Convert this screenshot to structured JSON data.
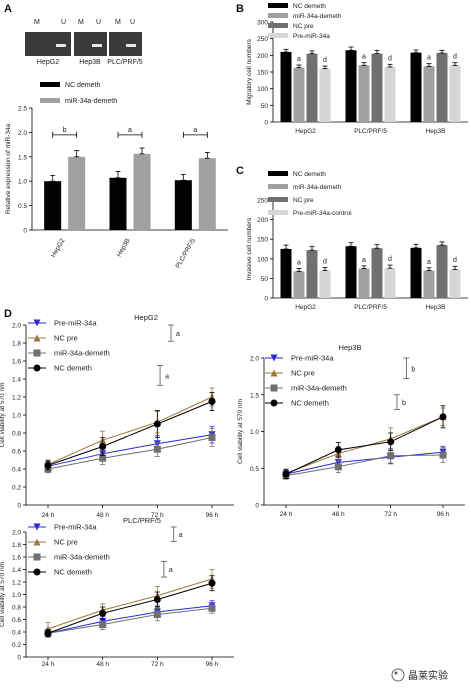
{
  "panel_letters": [
    "A",
    "B",
    "C",
    "D"
  ],
  "watermark": "晶莱实验",
  "gels": [
    {
      "label": "HepG2",
      "lanes": [
        "M",
        "U"
      ]
    },
    {
      "label": "Hep3B",
      "lanes": [
        "M",
        "U"
      ]
    },
    {
      "label": "PLC/PRF/5",
      "lanes": [
        "M",
        "U"
      ]
    }
  ],
  "chart_data": [
    {
      "id": "A",
      "type": "bar",
      "title": "",
      "ylabel": "Relative expression of miR-34a",
      "xlabel": "",
      "ylim": [
        0,
        2.5
      ],
      "yticks": [
        "0",
        "0.5",
        "1.0",
        "1.5",
        "2.0",
        "2.5"
      ],
      "categories": [
        "HepG2",
        "Hep3B",
        "PLC/PRF/5"
      ],
      "series": [
        {
          "name": "NC demeth",
          "color": "#000000",
          "values": [
            1.0,
            1.07,
            1.02
          ],
          "errors": [
            0.12,
            0.13,
            0.12
          ]
        },
        {
          "name": "miR-34a-demeth",
          "color": "#a0a0a0",
          "values": [
            1.5,
            1.56,
            1.47
          ],
          "errors": [
            0.13,
            0.12,
            0.12
          ]
        }
      ],
      "significance": [
        {
          "group": 0,
          "label": "b",
          "y": 1.95
        },
        {
          "group": 1,
          "label": "a",
          "y": 1.95
        },
        {
          "group": 2,
          "label": "a",
          "y": 1.95
        }
      ],
      "legend_position": "top"
    },
    {
      "id": "B",
      "type": "bar",
      "title": "",
      "ylabel": "Migratory cell numbers",
      "xlabel": "",
      "ylim": [
        0,
        300
      ],
      "yticks": [
        "0",
        "50",
        "100",
        "150",
        "200",
        "250",
        "300"
      ],
      "categories": [
        "HepG2",
        "PLC/PRF/5",
        "Hep3B"
      ],
      "series": [
        {
          "name": "NC demeth",
          "color": "#000000",
          "values": [
            210,
            215,
            208
          ],
          "errors": [
            8,
            10,
            8
          ]
        },
        {
          "name": "miR-34a-demeth",
          "color": "#a0a0a0",
          "values": [
            163,
            170,
            167
          ],
          "errors": [
            8,
            8,
            8
          ]
        },
        {
          "name": "NC pre",
          "color": "#707070",
          "values": [
            205,
            205,
            207
          ],
          "errors": [
            8,
            10,
            8
          ]
        },
        {
          "name": "Pre-miR-34a",
          "color": "#d6d6d6",
          "values": [
            160,
            165,
            170
          ],
          "errors": [
            8,
            8,
            8
          ]
        }
      ],
      "sig_labels": [
        {
          "group": 0,
          "bar": 1,
          "label": "a"
        },
        {
          "group": 0,
          "bar": 3,
          "label": "d"
        },
        {
          "group": 1,
          "bar": 1,
          "label": "a"
        },
        {
          "group": 1,
          "bar": 3,
          "label": "d"
        },
        {
          "group": 2,
          "bar": 1,
          "label": "a"
        },
        {
          "group": 2,
          "bar": 3,
          "label": "d"
        }
      ],
      "legend_position": "top"
    },
    {
      "id": "C",
      "type": "bar",
      "title": "",
      "ylabel": "Invasive cell numbers",
      "xlabel": "",
      "ylim": [
        0,
        250
      ],
      "yticks": [
        "0",
        "50",
        "100",
        "150",
        "200",
        "250"
      ],
      "categories": [
        "HepG2",
        "PLC/PRF/5",
        "Hep3B"
      ],
      "series": [
        {
          "name": "NC demeth",
          "color": "#000000",
          "values": [
            125,
            132,
            128
          ],
          "errors": [
            10,
            9,
            9
          ]
        },
        {
          "name": "miR-34a-demeth",
          "color": "#a0a0a0",
          "values": [
            68,
            75,
            70
          ],
          "errors": [
            7,
            7,
            7
          ]
        },
        {
          "name": "NC pre",
          "color": "#707070",
          "values": [
            122,
            127,
            135
          ],
          "errors": [
            9,
            9,
            8
          ]
        },
        {
          "name": "Pre-miR-34a-control",
          "color": "#d6d6d6",
          "values": [
            70,
            76,
            73
          ],
          "errors": [
            8,
            8,
            8
          ]
        }
      ],
      "sig_labels": [
        {
          "group": 0,
          "bar": 1,
          "label": "a"
        },
        {
          "group": 0,
          "bar": 3,
          "label": "d"
        },
        {
          "group": 1,
          "bar": 1,
          "label": "a"
        },
        {
          "group": 1,
          "bar": 3,
          "label": "d"
        },
        {
          "group": 2,
          "bar": 1,
          "label": "a"
        },
        {
          "group": 2,
          "bar": 3,
          "label": "d"
        }
      ],
      "legend_position": "top"
    },
    {
      "id": "D1",
      "type": "line",
      "title": "HepG2",
      "ylabel": "Cell viability at 570 nm",
      "xlabel": "",
      "x": [
        "24 h",
        "48 h",
        "72 h",
        "96 h"
      ],
      "ylim": [
        0,
        2.0
      ],
      "yticks": [
        "0",
        "0.2",
        "0.4",
        "0.6",
        "0.8",
        "1.0",
        "1.2",
        "1.4",
        "1.6",
        "1.8",
        "2.0"
      ],
      "series": [
        {
          "name": "Pre-miR-34a",
          "color": "#2a2ad6",
          "marker": "tri-down",
          "values": [
            0.43,
            0.57,
            0.68,
            0.78
          ],
          "errors": [
            0.05,
            0.07,
            0.09,
            0.09
          ]
        },
        {
          "name": "NC pre",
          "color": "#a0743a",
          "marker": "tri-up",
          "values": [
            0.45,
            0.72,
            0.92,
            1.2
          ],
          "errors": [
            0.05,
            0.1,
            0.12,
            0.1
          ]
        },
        {
          "name": "miR-34a-demeth",
          "color": "#707070",
          "marker": "square",
          "values": [
            0.4,
            0.52,
            0.62,
            0.75
          ],
          "errors": [
            0.04,
            0.07,
            0.08,
            0.1
          ]
        },
        {
          "name": "NC demeth",
          "color": "#000000",
          "marker": "circle",
          "values": [
            0.44,
            0.65,
            0.9,
            1.15
          ],
          "errors": [
            0.05,
            0.1,
            0.15,
            0.1
          ]
        }
      ],
      "brackets": [
        {
          "x": 2.25,
          "y1": 1.82,
          "y2": 2.0,
          "label": "a"
        },
        {
          "x": 2.05,
          "y1": 1.33,
          "y2": 1.55,
          "label": "a"
        }
      ],
      "legend_position": "top-left"
    },
    {
      "id": "D2",
      "type": "line",
      "title": "Hep3B",
      "ylabel": "Cell viability at 570 nm",
      "xlabel": "",
      "x": [
        "24 h",
        "48 h",
        "72 h",
        "96 h"
      ],
      "ylim": [
        0,
        2.0
      ],
      "yticks": [
        "0",
        "0.5",
        "1.0",
        "1.5",
        "2.0"
      ],
      "series": [
        {
          "name": "Pre-miR-34a",
          "color": "#2a2ad6",
          "marker": "tri-down",
          "values": [
            0.42,
            0.58,
            0.65,
            0.72
          ],
          "errors": [
            0.05,
            0.08,
            0.09,
            0.08
          ]
        },
        {
          "name": "NC pre",
          "color": "#a0743a",
          "marker": "tri-up",
          "values": [
            0.43,
            0.7,
            0.9,
            1.2
          ],
          "errors": [
            0.06,
            0.1,
            0.15,
            0.12
          ]
        },
        {
          "name": "miR-34a-demeth",
          "color": "#707070",
          "marker": "square",
          "values": [
            0.4,
            0.52,
            0.67,
            0.68
          ],
          "errors": [
            0.05,
            0.08,
            0.1,
            0.1
          ]
        },
        {
          "name": "NC demeth",
          "color": "#000000",
          "marker": "circle",
          "values": [
            0.42,
            0.75,
            0.86,
            1.2
          ],
          "errors": [
            0.06,
            0.1,
            0.12,
            0.15
          ]
        }
      ],
      "brackets": [
        {
          "x": 2.3,
          "y1": 1.72,
          "y2": 2.0,
          "label": "b"
        },
        {
          "x": 2.12,
          "y1": 1.3,
          "y2": 1.5,
          "label": "b"
        }
      ],
      "legend_position": "top-left"
    },
    {
      "id": "D3",
      "type": "line",
      "title": "PLC/PRF/5",
      "ylabel": "Cell viability at 570 nm",
      "xlabel": "",
      "x": [
        "24 h",
        "48 h",
        "72 h",
        "96 h"
      ],
      "ylim": [
        0,
        2.0
      ],
      "yticks": [
        "0",
        "0.2",
        "0.4",
        "0.6",
        "0.8",
        "1.0",
        "1.2",
        "1.4",
        "1.6",
        "1.8",
        "2.0"
      ],
      "series": [
        {
          "name": "Pre-miR-34a",
          "color": "#2a2ad6",
          "marker": "tri-down",
          "values": [
            0.38,
            0.57,
            0.72,
            0.82
          ],
          "errors": [
            0.05,
            0.08,
            0.09,
            0.08
          ]
        },
        {
          "name": "NC pre",
          "color": "#a0743a",
          "marker": "tri-up",
          "values": [
            0.45,
            0.75,
            0.98,
            1.25
          ],
          "errors": [
            0.1,
            0.1,
            0.15,
            0.15
          ]
        },
        {
          "name": "miR-34a-demeth",
          "color": "#707070",
          "marker": "square",
          "values": [
            0.38,
            0.52,
            0.68,
            0.78
          ],
          "errors": [
            0.05,
            0.08,
            0.1,
            0.08
          ]
        },
        {
          "name": "NC demeth",
          "color": "#000000",
          "marker": "circle",
          "values": [
            0.38,
            0.7,
            0.92,
            1.18
          ],
          "errors": [
            0.06,
            0.1,
            0.12,
            0.12
          ]
        }
      ],
      "brackets": [
        {
          "x": 2.3,
          "y1": 1.85,
          "y2": 2.08,
          "label": "a"
        },
        {
          "x": 2.12,
          "y1": 1.28,
          "y2": 1.53,
          "label": "a"
        }
      ],
      "legend_position": "top-left"
    }
  ]
}
